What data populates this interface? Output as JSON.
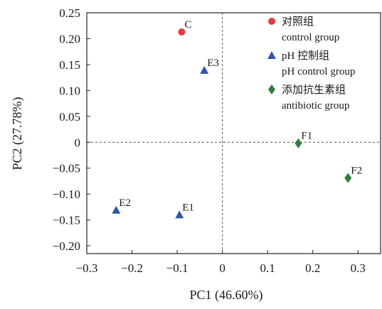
{
  "chart_data": {
    "type": "scatter",
    "xlabel": "PC1 (46.60%)",
    "ylabel": "PC2 (27.78%)",
    "xlim": [
      -0.3,
      0.35
    ],
    "ylim": [
      -0.215,
      0.25
    ],
    "xticks": [
      -0.3,
      -0.2,
      -0.1,
      0,
      0.1,
      0.2,
      0.3
    ],
    "xtick_labels": [
      "−0.3",
      "−0.2",
      "−0.1",
      "0",
      "0.1",
      "0.2",
      "0.3"
    ],
    "yticks": [
      0.25,
      0.2,
      0.15,
      0.1,
      0.05,
      0,
      -0.05,
      -0.1,
      -0.15,
      -0.2
    ],
    "ytick_labels": [
      "0.25",
      "0.20",
      "0.15",
      "0.10",
      "0.05",
      "0",
      "−0.05",
      "−0.10",
      "−0.15",
      "−0.20"
    ],
    "reference_lines": {
      "x": 0,
      "y": 0,
      "style": "dashed"
    },
    "legend_position": "top-right",
    "series": [
      {
        "name": "对照组",
        "name_en": "control group",
        "marker": "circle",
        "color": "#e8393f",
        "points": [
          {
            "label": "C",
            "x": -0.09,
            "y": 0.213
          }
        ]
      },
      {
        "name": "pH 控制组",
        "name_en": "pH control group",
        "marker": "triangle",
        "color": "#2f57a8",
        "points": [
          {
            "label": "E3",
            "x": -0.04,
            "y": 0.139
          },
          {
            "label": "E2",
            "x": -0.235,
            "y": -0.131
          },
          {
            "label": "E1",
            "x": -0.095,
            "y": -0.14
          }
        ]
      },
      {
        "name": "添加抗生素组",
        "name_en": "antibiotic group",
        "marker": "diamond",
        "color": "#2e7d3a",
        "points": [
          {
            "label": "F1",
            "x": 0.168,
            "y": -0.002
          },
          {
            "label": "F2",
            "x": 0.278,
            "y": -0.069
          }
        ]
      }
    ]
  }
}
